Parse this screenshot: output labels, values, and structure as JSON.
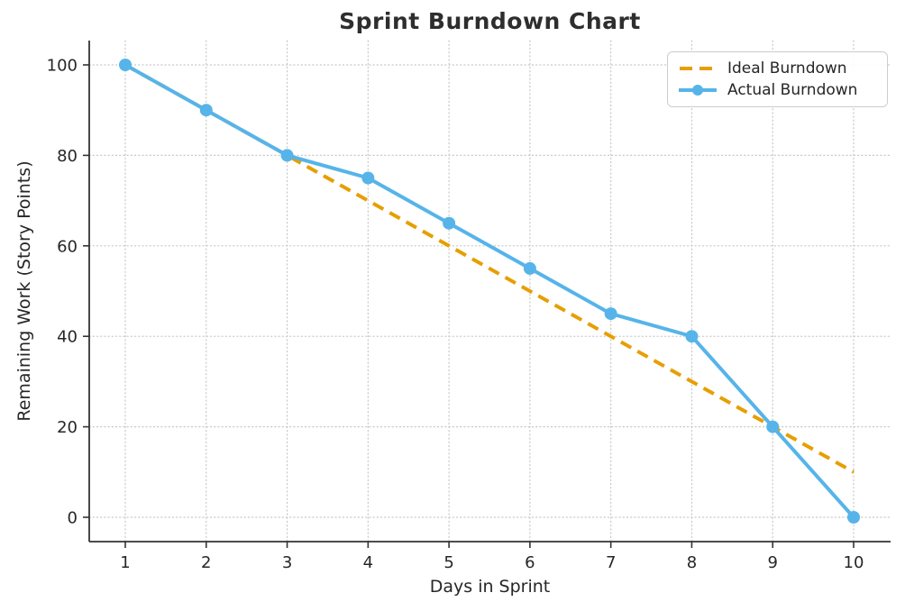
{
  "chart_data": {
    "type": "line",
    "title": "Sprint Burndown Chart",
    "xlabel": "Days in Sprint",
    "ylabel": "Remaining Work (Story Points)",
    "x": [
      1,
      2,
      3,
      4,
      5,
      6,
      7,
      8,
      9,
      10
    ],
    "x_ticks": [
      1,
      2,
      3,
      4,
      5,
      6,
      7,
      8,
      9,
      10
    ],
    "y_ticks": [
      0,
      20,
      40,
      60,
      80,
      100
    ],
    "xlim": [
      1,
      10
    ],
    "ylim": [
      0,
      100
    ],
    "grid": "dotted both axes",
    "legend_position": "upper right",
    "series": [
      {
        "name": "Ideal Burndown",
        "style": "dashed",
        "marker": "none",
        "color": "#E69F00",
        "values": [
          100,
          90,
          80,
          70,
          60,
          50,
          40,
          30,
          20,
          10
        ]
      },
      {
        "name": "Actual Burndown",
        "style": "solid",
        "marker": "circle",
        "color": "#56B4E9",
        "values": [
          100,
          90,
          80,
          75,
          65,
          55,
          45,
          40,
          20,
          0
        ]
      }
    ]
  },
  "colors": {
    "background": "#ffffff",
    "text": "#262626",
    "title": "#2e2e2e",
    "grid": "#c9c9c9",
    "spine": "#333333",
    "legend_border": "#cccccc",
    "ideal": "#E69F00",
    "actual": "#56B4E9"
  }
}
